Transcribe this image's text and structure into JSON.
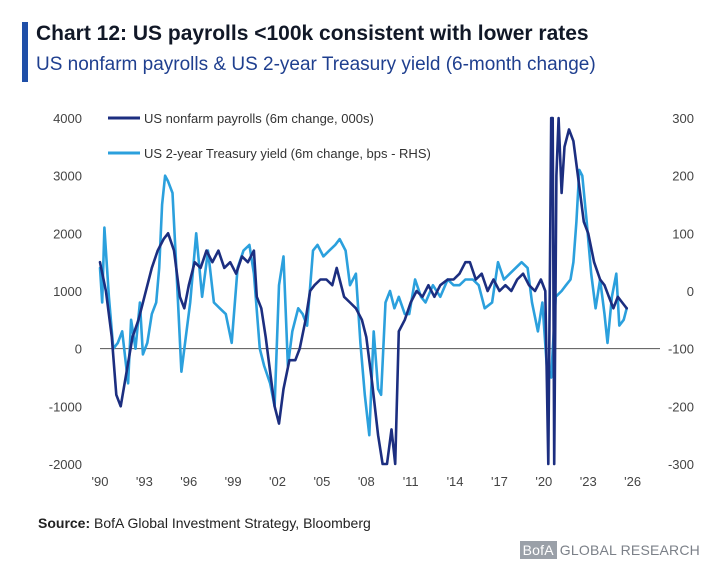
{
  "header": {
    "title": "Chart 12: US payrolls <100k consistent with lower rates",
    "subtitle": "US nonfarm payrolls & US 2-year Treasury yield (6-month change)"
  },
  "footer": {
    "source_label": "Source:",
    "source_text": " BofA Global Investment Strategy, Bloomberg",
    "brand_logo": "BofA",
    "brand_text": "GLOBAL RESEARCH"
  },
  "colors": {
    "payrolls": "#1c2e80",
    "yield": "#2ba0dd",
    "zero_line": "#555555",
    "tick_text": "#444444"
  },
  "chart_data": {
    "type": "line",
    "title": "Chart 12: US payrolls <100k consistent with lower rates",
    "subtitle": "US nonfarm payrolls & US 2-year Treasury yield (6-month change)",
    "x_ticks": [
      "'90",
      "'93",
      "'96",
      "'99",
      "'02",
      "'05",
      "'08",
      "'11",
      "'14",
      "'17",
      "'20",
      "'23",
      "'26"
    ],
    "x_range": [
      1990,
      2026.5
    ],
    "y_left": {
      "range": [
        -2000,
        4000
      ],
      "ticks": [
        "4000",
        "3000",
        "2000",
        "1000",
        "0",
        "-1000",
        "-2000"
      ]
    },
    "y_right": {
      "range": [
        -300,
        300
      ],
      "ticks": [
        "300",
        "200",
        "100",
        "0",
        "-100",
        "-200",
        "-300"
      ]
    },
    "legend_position": "top-left",
    "grid": false,
    "series": [
      {
        "name": "US nonfarm payrolls (6m change, 000s)",
        "axis": "left",
        "points": [
          [
            1990.0,
            1500
          ],
          [
            1990.4,
            1000
          ],
          [
            1990.8,
            200
          ],
          [
            1991.1,
            -800
          ],
          [
            1991.4,
            -1000
          ],
          [
            1991.8,
            -400
          ],
          [
            1992.2,
            200
          ],
          [
            1992.6,
            500
          ],
          [
            1993.0,
            900
          ],
          [
            1993.5,
            1400
          ],
          [
            1993.9,
            1700
          ],
          [
            1994.3,
            1900
          ],
          [
            1994.6,
            2000
          ],
          [
            1995.0,
            1700
          ],
          [
            1995.4,
            900
          ],
          [
            1995.7,
            700
          ],
          [
            1996.0,
            1100
          ],
          [
            1996.4,
            1500
          ],
          [
            1996.8,
            1400
          ],
          [
            1997.2,
            1700
          ],
          [
            1997.6,
            1500
          ],
          [
            1998.0,
            1700
          ],
          [
            1998.4,
            1400
          ],
          [
            1998.8,
            1500
          ],
          [
            1999.2,
            1300
          ],
          [
            1999.6,
            1600
          ],
          [
            2000.0,
            1500
          ],
          [
            2000.4,
            1700
          ],
          [
            2000.6,
            900
          ],
          [
            2000.9,
            700
          ],
          [
            2001.2,
            200
          ],
          [
            2001.5,
            -400
          ],
          [
            2001.8,
            -1000
          ],
          [
            2002.1,
            -1300
          ],
          [
            2002.4,
            -700
          ],
          [
            2002.8,
            -200
          ],
          [
            2003.2,
            -200
          ],
          [
            2003.5,
            0
          ],
          [
            2003.9,
            500
          ],
          [
            2004.2,
            1000
          ],
          [
            2004.5,
            1100
          ],
          [
            2004.9,
            1200
          ],
          [
            2005.3,
            1200
          ],
          [
            2005.7,
            1100
          ],
          [
            2006.0,
            1400
          ],
          [
            2006.5,
            900
          ],
          [
            2006.9,
            800
          ],
          [
            2007.3,
            700
          ],
          [
            2007.7,
            500
          ],
          [
            2008.0,
            200
          ],
          [
            2008.4,
            -600
          ],
          [
            2008.8,
            -1500
          ],
          [
            2009.1,
            -2200
          ],
          [
            2009.4,
            -2300
          ],
          [
            2009.7,
            -1400
          ],
          [
            2009.95,
            -2000
          ],
          [
            2010.2,
            300
          ],
          [
            2010.6,
            500
          ],
          [
            2011.0,
            800
          ],
          [
            2011.4,
            1000
          ],
          [
            2011.8,
            900
          ],
          [
            2012.2,
            1100
          ],
          [
            2012.6,
            900
          ],
          [
            2013.0,
            1100
          ],
          [
            2013.5,
            1200
          ],
          [
            2013.9,
            1200
          ],
          [
            2014.3,
            1300
          ],
          [
            2014.7,
            1500
          ],
          [
            2015.0,
            1500
          ],
          [
            2015.4,
            1200
          ],
          [
            2015.8,
            1300
          ],
          [
            2016.2,
            1000
          ],
          [
            2016.6,
            1200
          ],
          [
            2017.0,
            1000
          ],
          [
            2017.4,
            1100
          ],
          [
            2017.8,
            1000
          ],
          [
            2018.2,
            1200
          ],
          [
            2018.6,
            1300
          ],
          [
            2019.0,
            1100
          ],
          [
            2019.4,
            1000
          ],
          [
            2019.8,
            1200
          ],
          [
            2020.1,
            1000
          ],
          [
            2020.3,
            -2000
          ],
          [
            2020.5,
            4000
          ],
          [
            2020.6,
            4000
          ],
          [
            2020.7,
            -2000
          ],
          [
            2020.85,
            3000
          ],
          [
            2021.0,
            4000
          ],
          [
            2021.2,
            2700
          ],
          [
            2021.4,
            3500
          ],
          [
            2021.7,
            3800
          ],
          [
            2022.0,
            3600
          ],
          [
            2022.3,
            3000
          ],
          [
            2022.7,
            2200
          ],
          [
            2023.0,
            2000
          ],
          [
            2023.4,
            1500
          ],
          [
            2023.8,
            1200
          ],
          [
            2024.1,
            1100
          ],
          [
            2024.4,
            900
          ],
          [
            2024.7,
            700
          ],
          [
            2025.0,
            900
          ],
          [
            2025.3,
            800
          ],
          [
            2025.6,
            700
          ]
        ]
      },
      {
        "name": "US 2-year Treasury yield (6m change, bps - RHS)",
        "axis": "right",
        "points": [
          [
            1990.0,
            40
          ],
          [
            1990.15,
            -20
          ],
          [
            1990.3,
            110
          ],
          [
            1990.6,
            -10
          ],
          [
            1990.9,
            -100
          ],
          [
            1991.2,
            -90
          ],
          [
            1991.5,
            -70
          ],
          [
            1991.9,
            -160
          ],
          [
            1992.1,
            -50
          ],
          [
            1992.4,
            -100
          ],
          [
            1992.7,
            -20
          ],
          [
            1992.9,
            -110
          ],
          [
            1993.2,
            -90
          ],
          [
            1993.5,
            -40
          ],
          [
            1993.8,
            -20
          ],
          [
            1994.0,
            40
          ],
          [
            1994.2,
            150
          ],
          [
            1994.4,
            200
          ],
          [
            1994.6,
            190
          ],
          [
            1994.9,
            170
          ],
          [
            1995.2,
            20
          ],
          [
            1995.5,
            -140
          ],
          [
            1995.8,
            -80
          ],
          [
            1996.1,
            -20
          ],
          [
            1996.5,
            100
          ],
          [
            1996.9,
            -10
          ],
          [
            1997.3,
            70
          ],
          [
            1997.7,
            -20
          ],
          [
            1998.1,
            -30
          ],
          [
            1998.5,
            -40
          ],
          [
            1998.9,
            -90
          ],
          [
            1999.3,
            40
          ],
          [
            1999.7,
            70
          ],
          [
            2000.1,
            80
          ],
          [
            2000.4,
            30
          ],
          [
            2000.8,
            -100
          ],
          [
            2001.1,
            -130
          ],
          [
            2001.5,
            -160
          ],
          [
            2001.8,
            -200
          ],
          [
            2002.1,
            10
          ],
          [
            2002.4,
            60
          ],
          [
            2002.7,
            -130
          ],
          [
            2003.0,
            -70
          ],
          [
            2003.4,
            -30
          ],
          [
            2003.7,
            -40
          ],
          [
            2004.0,
            -60
          ],
          [
            2004.4,
            70
          ],
          [
            2004.7,
            80
          ],
          [
            2005.1,
            60
          ],
          [
            2005.5,
            70
          ],
          [
            2005.9,
            80
          ],
          [
            2006.2,
            90
          ],
          [
            2006.6,
            70
          ],
          [
            2006.9,
            10
          ],
          [
            2007.3,
            30
          ],
          [
            2007.6,
            -90
          ],
          [
            2007.9,
            -180
          ],
          [
            2008.2,
            -250
          ],
          [
            2008.5,
            -70
          ],
          [
            2008.8,
            -170
          ],
          [
            2009.0,
            -180
          ],
          [
            2009.3,
            -20
          ],
          [
            2009.6,
            0
          ],
          [
            2009.9,
            -30
          ],
          [
            2010.2,
            -10
          ],
          [
            2010.6,
            -40
          ],
          [
            2010.9,
            -40
          ],
          [
            2011.3,
            20
          ],
          [
            2011.7,
            -10
          ],
          [
            2012.0,
            -20
          ],
          [
            2012.5,
            10
          ],
          [
            2013.0,
            -10
          ],
          [
            2013.5,
            20
          ],
          [
            2013.9,
            10
          ],
          [
            2014.3,
            10
          ],
          [
            2014.7,
            20
          ],
          [
            2015.2,
            20
          ],
          [
            2015.6,
            10
          ],
          [
            2016.0,
            -30
          ],
          [
            2016.5,
            -20
          ],
          [
            2016.9,
            50
          ],
          [
            2017.3,
            20
          ],
          [
            2017.7,
            30
          ],
          [
            2018.1,
            40
          ],
          [
            2018.5,
            50
          ],
          [
            2018.9,
            40
          ],
          [
            2019.2,
            -20
          ],
          [
            2019.6,
            -70
          ],
          [
            2019.9,
            -20
          ],
          [
            2020.2,
            -130
          ],
          [
            2020.5,
            -150
          ],
          [
            2020.8,
            -10
          ],
          [
            2021.2,
            0
          ],
          [
            2021.5,
            10
          ],
          [
            2021.8,
            20
          ],
          [
            2022.0,
            50
          ],
          [
            2022.2,
            120
          ],
          [
            2022.4,
            210
          ],
          [
            2022.6,
            200
          ],
          [
            2022.9,
            120
          ],
          [
            2023.2,
            30
          ],
          [
            2023.5,
            -30
          ],
          [
            2023.8,
            20
          ],
          [
            2024.1,
            -40
          ],
          [
            2024.3,
            -90
          ],
          [
            2024.6,
            -10
          ],
          [
            2024.9,
            30
          ],
          [
            2025.1,
            -60
          ],
          [
            2025.4,
            -50
          ],
          [
            2025.6,
            -30
          ]
        ]
      }
    ]
  }
}
